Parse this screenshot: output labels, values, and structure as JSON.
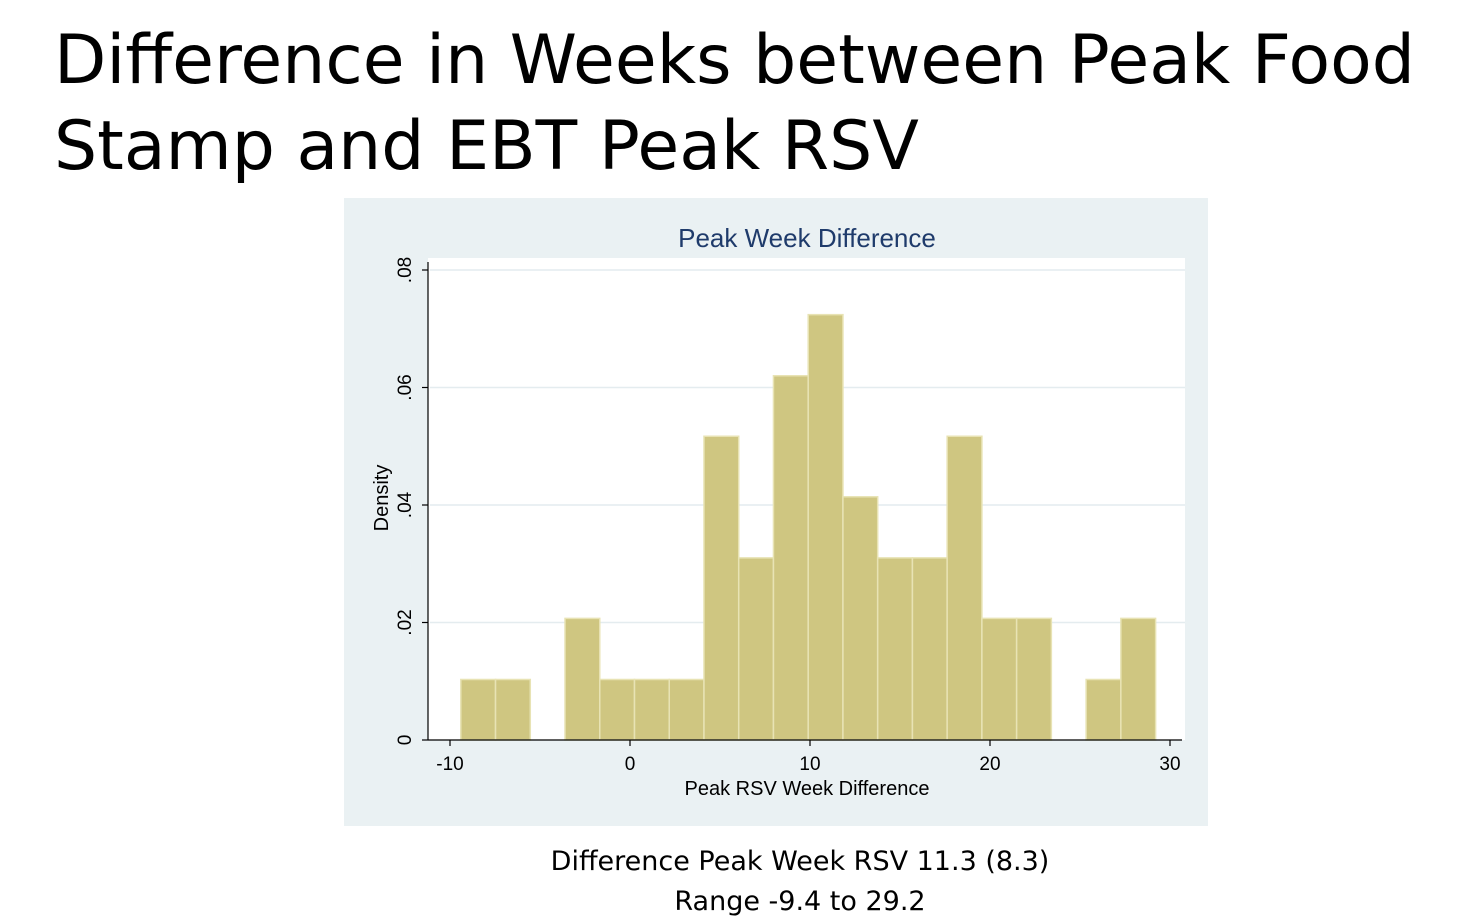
{
  "slide": {
    "title": "Difference in Weeks between Peak Food Stamp and EBT Peak RSV",
    "caption_line1": "Difference Peak Week RSV 11.3 (8.3)",
    "caption_line2": "Range -9.4 to 29.2"
  },
  "chart_data": {
    "type": "bar",
    "title": "Peak Week Difference",
    "xlabel": "Peak RSV Week Difference",
    "ylabel": "Density",
    "xlim": [
      -11,
      31
    ],
    "ylim": [
      0,
      0.08
    ],
    "x_ticks": [
      -10,
      0,
      10,
      20,
      30
    ],
    "x_tick_labels": [
      "-10",
      "0",
      "10",
      "20",
      "30"
    ],
    "y_ticks": [
      0,
      0.02,
      0.04,
      0.06,
      0.08
    ],
    "y_tick_labels": [
      "0",
      ".02",
      ".04",
      ".06",
      ".08"
    ],
    "grid": true,
    "bin_width": 1.93,
    "bin_starts": [
      -9.4,
      -7.47,
      -5.54,
      -3.61,
      -1.68,
      0.25,
      2.18,
      4.11,
      6.04,
      7.97,
      9.9,
      11.83,
      13.76,
      15.69,
      17.62,
      19.55,
      21.48,
      23.41,
      25.34,
      27.27
    ],
    "values": [
      0.0103,
      0.0103,
      0,
      0.0207,
      0.0103,
      0.0103,
      0.0103,
      0.0517,
      0.031,
      0.062,
      0.0724,
      0.0414,
      0.031,
      0.031,
      0.0517,
      0.0207,
      0.0207,
      0,
      0.0103,
      0.0207
    ],
    "colors": {
      "bar_fill": "#cfc681",
      "bar_stroke": "#e8e3b4",
      "title": "#1f3b6b",
      "panel": "#eaf1f3",
      "plot": "#ffffff",
      "grid": "#e4ecef",
      "axis": "#000000"
    }
  }
}
